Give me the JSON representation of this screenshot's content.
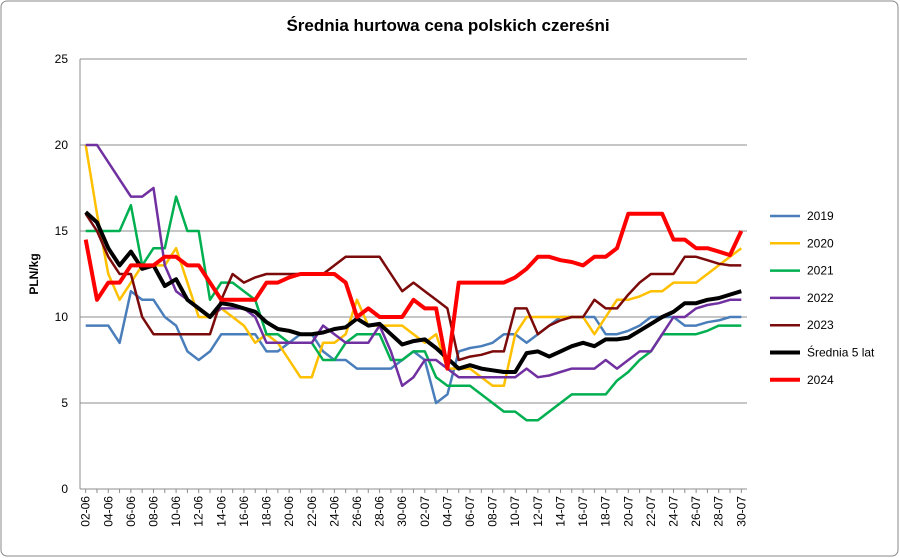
{
  "chart_data": {
    "type": "line",
    "title": "Średnia hurtowa cena polskich czereśni",
    "y_label": "PLN/kg",
    "categories": [
      "02-06",
      null,
      "04-06",
      null,
      "06-06",
      null,
      "08-06",
      null,
      "10-06",
      null,
      "12-06",
      null,
      "14-06",
      null,
      "16-06",
      null,
      "18-06",
      null,
      "20-06",
      null,
      "22-06",
      null,
      "24-06",
      null,
      "26-06",
      null,
      "28-06",
      null,
      "30-06",
      null,
      "02-07",
      null,
      "04-07",
      null,
      "06-07",
      null,
      "08-07",
      null,
      "10-07",
      null,
      "12-07",
      null,
      "14-07",
      null,
      "16-07",
      null,
      "18-07",
      null,
      "20-07",
      null,
      "22-07",
      null,
      "24-07",
      null,
      "26-07",
      null,
      "28-07",
      null,
      "30-07"
    ],
    "ylim": [
      0,
      25
    ],
    "yticks": [
      0,
      5,
      10,
      15,
      20,
      25
    ],
    "grid": true,
    "legend": "right",
    "series": [
      {
        "name": "2019",
        "color": "#4a7ebb",
        "width": 2.5,
        "values": [
          9.5,
          9.5,
          9.5,
          8.5,
          11.5,
          11,
          11,
          10,
          9.5,
          8,
          7.5,
          8,
          9,
          9,
          9,
          9,
          8,
          8,
          8.5,
          9,
          9,
          8,
          7.5,
          7.5,
          7,
          7,
          7,
          7,
          7.5,
          8,
          7.5,
          5,
          5.5,
          8,
          8.2,
          8.3,
          8.5,
          9,
          9,
          8.5,
          9,
          9.5,
          10,
          10,
          10,
          10,
          9,
          9,
          9.2,
          9.5,
          10,
          10,
          10,
          9.5,
          9.5,
          9.7,
          9.8,
          10,
          10
        ]
      },
      {
        "name": "2020",
        "color": "#ffc000",
        "width": 2.5,
        "values": [
          20,
          16,
          12.5,
          11,
          12,
          13,
          13,
          13,
          14,
          12,
          10,
          10,
          10.5,
          10,
          9.5,
          8.5,
          9,
          8.5,
          7.5,
          6.5,
          6.5,
          8.5,
          8.5,
          9,
          11,
          9.5,
          9.5,
          9.5,
          9.5,
          9,
          8.5,
          9,
          7,
          7,
          7,
          6.5,
          6,
          6,
          9,
          10,
          10,
          10,
          10,
          10,
          10,
          9,
          10,
          11,
          11,
          11.2,
          11.5,
          11.5,
          12,
          12,
          12,
          12.5,
          13,
          13.5,
          14
        ]
      },
      {
        "name": "2021",
        "color": "#00b050",
        "width": 2.5,
        "values": [
          15,
          15,
          15,
          15,
          16.5,
          13,
          14,
          14,
          17,
          15,
          15,
          11,
          12,
          12,
          11.5,
          11,
          9,
          9,
          8.5,
          8.5,
          8.5,
          7.5,
          7.5,
          8.5,
          9,
          9,
          9,
          7.5,
          7.5,
          8,
          8,
          6.5,
          6,
          6,
          6,
          5.5,
          5,
          4.5,
          4.5,
          4,
          4,
          4.5,
          5,
          5.5,
          5.5,
          5.5,
          5.5,
          6.3,
          6.8,
          7.5,
          8,
          9,
          9,
          9,
          9,
          9.2,
          9.5,
          9.5,
          9.5
        ]
      },
      {
        "name": "2022",
        "color": "#7030a0",
        "width": 2.5,
        "values": [
          20,
          20,
          19,
          18,
          17,
          17,
          17.5,
          13,
          11.5,
          11,
          10.5,
          10,
          10.5,
          10.5,
          10.5,
          10,
          8.5,
          8.5,
          8.5,
          8.5,
          8.5,
          9.5,
          9,
          8.5,
          8.5,
          8.5,
          9.5,
          8,
          6,
          6.5,
          7.5,
          7.5,
          7,
          6.5,
          6.5,
          6.5,
          6.5,
          6.5,
          6.5,
          7,
          6.5,
          6.6,
          6.8,
          7,
          7,
          7,
          7.5,
          7,
          7.5,
          8,
          8,
          9,
          10,
          10,
          10.5,
          10.7,
          10.8,
          11,
          11
        ]
      },
      {
        "name": "2023",
        "color": "#7b0a0a",
        "width": 2.5,
        "values": [
          16,
          15,
          13.5,
          12.5,
          12.5,
          10,
          9,
          9,
          9,
          9,
          9,
          9,
          11,
          12.5,
          12,
          12.3,
          12.5,
          12.5,
          12.5,
          12.5,
          12.5,
          12.5,
          13,
          13.5,
          13.5,
          13.5,
          13.5,
          12.5,
          11.5,
          12,
          11.5,
          11,
          10.5,
          7.5,
          7.7,
          7.8,
          8,
          8,
          10.5,
          10.5,
          9,
          9.5,
          9.8,
          10,
          10,
          11,
          10.5,
          10.5,
          11.3,
          12,
          12.5,
          12.5,
          12.5,
          13.5,
          13.5,
          13.3,
          13.1,
          13,
          13
        ]
      },
      {
        "name": "Średnia 5 lat",
        "color": "#000000",
        "width": 4,
        "values": [
          16.1,
          15.5,
          14,
          13,
          13.8,
          12.8,
          13,
          11.8,
          12.2,
          11,
          10.5,
          10,
          10.8,
          10.7,
          10.5,
          10.3,
          9.7,
          9.3,
          9.2,
          9,
          9,
          9.1,
          9.3,
          9.4,
          9.9,
          9.5,
          9.6,
          9,
          8.4,
          8.6,
          8.7,
          8.2,
          7.6,
          7,
          7.2,
          7,
          6.9,
          6.8,
          6.8,
          7.9,
          8,
          7.7,
          8,
          8.3,
          8.5,
          8.3,
          8.7,
          8.7,
          8.8,
          9.2,
          9.6,
          10,
          10.3,
          10.8,
          10.8,
          11,
          11.1,
          11.3,
          11.5
        ]
      },
      {
        "name": "2024",
        "color": "#ff0000",
        "width": 4,
        "values": [
          14.5,
          11,
          12,
          12,
          13,
          13,
          13,
          13.5,
          13.5,
          13,
          13,
          12,
          11,
          11,
          11,
          11,
          12,
          12,
          12.3,
          12.5,
          12.5,
          12.5,
          12.5,
          12,
          10,
          10.5,
          10,
          10,
          10,
          11,
          10.5,
          10.5,
          7,
          12,
          12,
          12,
          12,
          12,
          12.3,
          12.8,
          13.5,
          13.5,
          13.3,
          13.2,
          13,
          13.5,
          13.5,
          14,
          16,
          16,
          16,
          16,
          14.5,
          14.5,
          14,
          14,
          13.8,
          13.6,
          15
        ]
      }
    ]
  }
}
